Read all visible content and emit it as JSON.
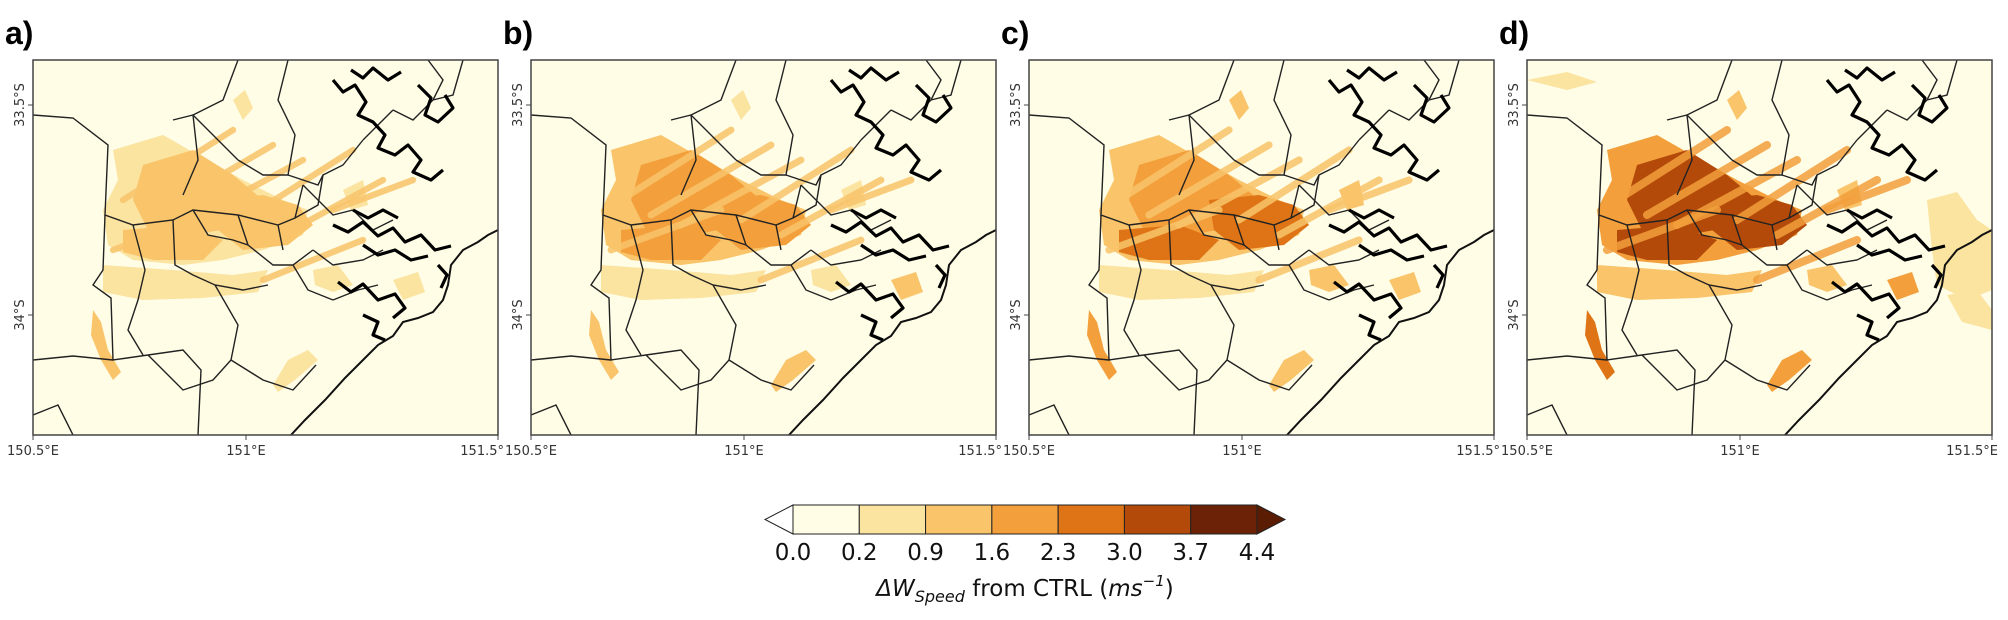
{
  "chart_data": {
    "type": "heatmap",
    "description_units": "m/s",
    "panels": [
      {
        "label": "a)",
        "intensity": 0.45,
        "xticks": [
          "150.5°E",
          "151°E",
          "151.5°"
        ],
        "yticks": [
          "33.5°S",
          "34°S"
        ]
      },
      {
        "label": "b)",
        "intensity": 0.62,
        "xticks": [
          "150.5°E",
          "151°E",
          "151.5°"
        ],
        "yticks": [
          "33.5°S",
          "34°S"
        ]
      },
      {
        "label": "c)",
        "intensity": 0.75,
        "xticks": [
          "150.5°E",
          "151°E",
          "151.5°"
        ],
        "yticks": [
          "33.5°S",
          "34°S"
        ]
      },
      {
        "label": "d)",
        "intensity": 1.0,
        "xticks": [
          "150.5°E",
          "151°E",
          "151.5°E"
        ],
        "yticks": [
          "33.5°S",
          "34°S"
        ]
      }
    ],
    "colorbar": {
      "levels": [
        "0.0",
        "0.2",
        "0.9",
        "1.6",
        "2.3",
        "3.0",
        "3.7",
        "4.4"
      ],
      "colors": [
        "#fffde6",
        "#fbe3a0",
        "#f9c46a",
        "#f39f3c",
        "#de7416",
        "#b34a0a",
        "#6b2206"
      ],
      "extend": "both",
      "title": "ΔW",
      "title_sub": "Speed",
      "title_rest": " from CTRL (",
      "title_unit": "ms",
      "title_unit_sup": "−1",
      "title_close": ")"
    },
    "background_color": "#fffde6"
  }
}
